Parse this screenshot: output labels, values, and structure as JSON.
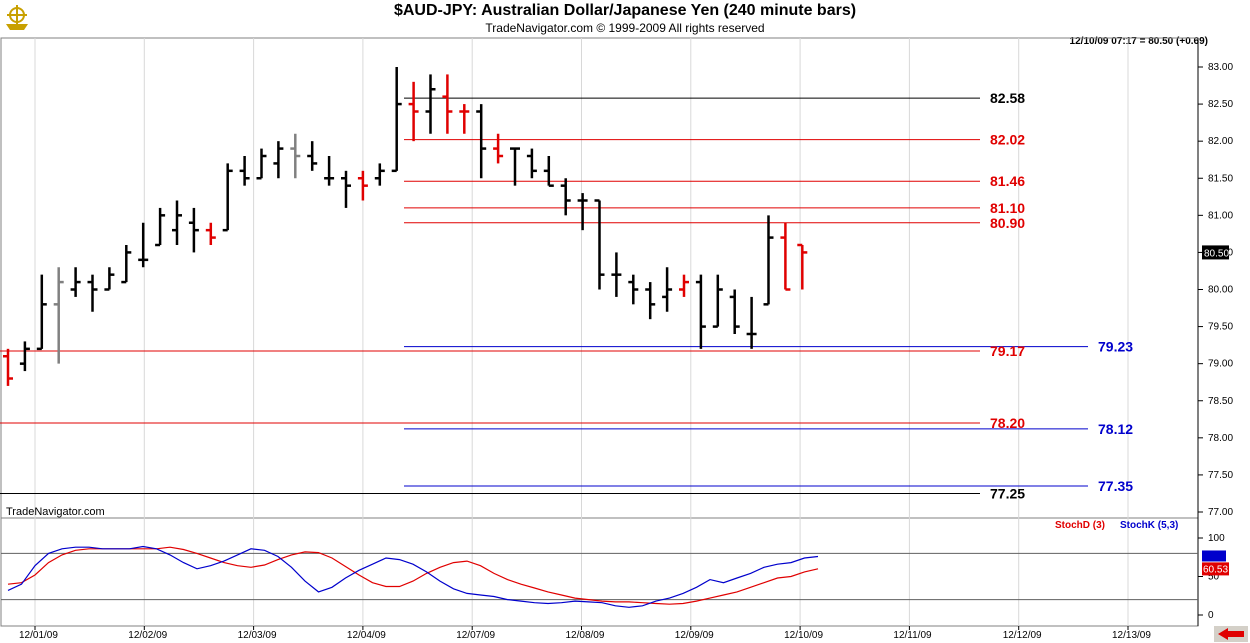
{
  "header": {
    "title": "$AUD-JPY:  Australian Dollar/Japanese Yen  (240 minute bars)",
    "subtitle": "TradeNavigator.com © 1999-2009 All rights reserved",
    "quote": "12/10/09 07:17 = 80.50 (+0.69)",
    "watermark": "TradeNavigator.com"
  },
  "legend": {
    "stochd": "StochD (3)",
    "stochk": "StochK (5,3)"
  },
  "colors": {
    "up": "#000000",
    "down": "#e00000",
    "neutral": "#808080",
    "blue": "#0000cc",
    "red": "#e00000"
  },
  "chart_data": [
    {
      "type": "bar",
      "title": "$AUD-JPY:  Australian Dollar/Japanese Yen  (240 minute bars)",
      "ylim": [
        77.0,
        83.2
      ],
      "yticks": [
        "83.00",
        "82.50",
        "82.00",
        "81.50",
        "81.00",
        "80.50",
        "80.00",
        "79.50",
        "79.00",
        "78.50",
        "78.00",
        "77.50",
        "77.00"
      ],
      "date_labels": [
        "12/01/09",
        "12/02/09",
        "12/03/09",
        "12/04/09",
        "12/07/09",
        "12/08/09",
        "12/09/09",
        "12/10/09",
        "12/11/09",
        "12/12/09",
        "12/13/09"
      ],
      "last_price_label": "80.50",
      "bars": [
        {
          "o": 79.1,
          "h": 79.2,
          "l": 78.7,
          "c": 78.8,
          "col": "r"
        },
        {
          "o": 79.0,
          "h": 79.3,
          "l": 78.9,
          "c": 79.2,
          "col": "k"
        },
        {
          "o": 79.2,
          "h": 80.2,
          "l": 79.2,
          "c": 79.8,
          "col": "k"
        },
        {
          "o": 79.8,
          "h": 80.3,
          "l": 79.0,
          "c": 80.1,
          "col": "g"
        },
        {
          "o": 80.0,
          "h": 80.3,
          "l": 79.9,
          "c": 80.1,
          "col": "k"
        },
        {
          "o": 80.1,
          "h": 80.2,
          "l": 79.7,
          "c": 80.0,
          "col": "k"
        },
        {
          "o": 80.0,
          "h": 80.3,
          "l": 80.0,
          "c": 80.2,
          "col": "k"
        },
        {
          "o": 80.1,
          "h": 80.6,
          "l": 80.1,
          "c": 80.5,
          "col": "k"
        },
        {
          "o": 80.4,
          "h": 80.9,
          "l": 80.3,
          "c": 80.4,
          "col": "k"
        },
        {
          "o": 80.6,
          "h": 81.1,
          "l": 80.6,
          "c": 81.0,
          "col": "k"
        },
        {
          "o": 80.8,
          "h": 81.2,
          "l": 80.6,
          "c": 81.0,
          "col": "k"
        },
        {
          "o": 80.9,
          "h": 81.1,
          "l": 80.5,
          "c": 80.8,
          "col": "k"
        },
        {
          "o": 80.8,
          "h": 80.9,
          "l": 80.6,
          "c": 80.7,
          "col": "r"
        },
        {
          "o": 80.8,
          "h": 81.7,
          "l": 80.8,
          "c": 81.6,
          "col": "k"
        },
        {
          "o": 81.6,
          "h": 81.8,
          "l": 81.4,
          "c": 81.5,
          "col": "k"
        },
        {
          "o": 81.5,
          "h": 81.9,
          "l": 81.5,
          "c": 81.8,
          "col": "k"
        },
        {
          "o": 81.7,
          "h": 82.0,
          "l": 81.5,
          "c": 81.9,
          "col": "k"
        },
        {
          "o": 81.9,
          "h": 82.1,
          "l": 81.5,
          "c": 81.8,
          "col": "g"
        },
        {
          "o": 81.8,
          "h": 82.0,
          "l": 81.6,
          "c": 81.7,
          "col": "k"
        },
        {
          "o": 81.5,
          "h": 81.8,
          "l": 81.4,
          "c": 81.5,
          "col": "k"
        },
        {
          "o": 81.5,
          "h": 81.6,
          "l": 81.1,
          "c": 81.4,
          "col": "k"
        },
        {
          "o": 81.5,
          "h": 81.6,
          "l": 81.2,
          "c": 81.4,
          "col": "r"
        },
        {
          "o": 81.5,
          "h": 81.7,
          "l": 81.4,
          "c": 81.6,
          "col": "k"
        },
        {
          "o": 81.6,
          "h": 83.0,
          "l": 81.6,
          "c": 82.5,
          "col": "k"
        },
        {
          "o": 82.5,
          "h": 82.8,
          "l": 82.0,
          "c": 82.4,
          "col": "r"
        },
        {
          "o": 82.4,
          "h": 82.9,
          "l": 82.1,
          "c": 82.7,
          "col": "k"
        },
        {
          "o": 82.6,
          "h": 82.9,
          "l": 82.1,
          "c": 82.4,
          "col": "r"
        },
        {
          "o": 82.4,
          "h": 82.5,
          "l": 82.1,
          "c": 82.4,
          "col": "r"
        },
        {
          "o": 82.4,
          "h": 82.5,
          "l": 81.5,
          "c": 81.9,
          "col": "k"
        },
        {
          "o": 81.9,
          "h": 82.1,
          "l": 81.7,
          "c": 81.8,
          "col": "r"
        },
        {
          "o": 81.9,
          "h": 81.9,
          "l": 81.4,
          "c": 81.9,
          "col": "k"
        },
        {
          "o": 81.8,
          "h": 81.9,
          "l": 81.5,
          "c": 81.6,
          "col": "k"
        },
        {
          "o": 81.6,
          "h": 81.8,
          "l": 81.4,
          "c": 81.4,
          "col": "k"
        },
        {
          "o": 81.4,
          "h": 81.5,
          "l": 81.0,
          "c": 81.2,
          "col": "k"
        },
        {
          "o": 81.2,
          "h": 81.3,
          "l": 80.8,
          "c": 81.2,
          "col": "k"
        },
        {
          "o": 81.2,
          "h": 81.2,
          "l": 80.0,
          "c": 80.2,
          "col": "k"
        },
        {
          "o": 80.2,
          "h": 80.5,
          "l": 79.9,
          "c": 80.2,
          "col": "k"
        },
        {
          "o": 80.1,
          "h": 80.2,
          "l": 79.8,
          "c": 80.0,
          "col": "k"
        },
        {
          "o": 80.0,
          "h": 80.1,
          "l": 79.6,
          "c": 79.8,
          "col": "k"
        },
        {
          "o": 79.9,
          "h": 80.3,
          "l": 79.7,
          "c": 80.0,
          "col": "k"
        },
        {
          "o": 80.0,
          "h": 80.2,
          "l": 79.9,
          "c": 80.1,
          "col": "r"
        },
        {
          "o": 80.1,
          "h": 80.2,
          "l": 79.2,
          "c": 79.5,
          "col": "k"
        },
        {
          "o": 79.5,
          "h": 80.2,
          "l": 79.5,
          "c": 80.0,
          "col": "k"
        },
        {
          "o": 79.9,
          "h": 80.0,
          "l": 79.4,
          "c": 79.5,
          "col": "k"
        },
        {
          "o": 79.4,
          "h": 79.9,
          "l": 79.2,
          "c": 79.4,
          "col": "k"
        },
        {
          "o": 79.8,
          "h": 81.0,
          "l": 79.8,
          "c": 80.7,
          "col": "k"
        },
        {
          "o": 80.7,
          "h": 80.9,
          "l": 80.0,
          "c": 80.0,
          "col": "r"
        },
        {
          "o": 80.6,
          "h": 80.6,
          "l": 80.0,
          "c": 80.5,
          "col": "r"
        }
      ],
      "levels": [
        {
          "value": 82.58,
          "label": "82.58",
          "color": "#000000",
          "x_start": "mid",
          "label_pos": "left"
        },
        {
          "value": 82.02,
          "label": "82.02",
          "color": "#e00000",
          "x_start": "mid",
          "label_pos": "left"
        },
        {
          "value": 81.46,
          "label": "81.46",
          "color": "#e00000",
          "x_start": "mid",
          "label_pos": "left"
        },
        {
          "value": 81.1,
          "label": "81.10",
          "color": "#e00000",
          "x_start": "mid",
          "label_pos": "left"
        },
        {
          "value": 80.9,
          "label": "80.90",
          "color": "#e00000",
          "x_start": "mid",
          "label_pos": "left"
        },
        {
          "value": 79.23,
          "label": "79.23",
          "color": "#0000cc",
          "x_start": "mid",
          "label_pos": "right"
        },
        {
          "value": 79.17,
          "label": "79.17",
          "color": "#e00000",
          "x_start": "left",
          "label_pos": "left"
        },
        {
          "value": 78.2,
          "label": "78.20",
          "color": "#e00000",
          "x_start": "left",
          "label_pos": "left"
        },
        {
          "value": 78.12,
          "label": "78.12",
          "color": "#0000cc",
          "x_start": "mid",
          "label_pos": "right"
        },
        {
          "value": 77.35,
          "label": "77.35",
          "color": "#0000cc",
          "x_start": "mid",
          "label_pos": "right"
        },
        {
          "value": 77.25,
          "label": "77.25",
          "color": "#000000",
          "x_start": "left",
          "label_pos": "left"
        }
      ]
    },
    {
      "type": "line",
      "ylim": [
        0,
        100
      ],
      "yticks": [
        "100",
        "50",
        "0"
      ],
      "reference_lines": [
        80,
        20
      ],
      "last_value_label": "60.53",
      "series": [
        {
          "name": "StochD (3)",
          "color": "#e00000",
          "values": [
            40,
            42,
            52,
            68,
            78,
            84,
            86,
            86,
            86,
            86,
            86,
            86,
            88,
            85,
            80,
            74,
            68,
            64,
            62,
            65,
            72,
            78,
            82,
            81,
            74,
            63,
            52,
            42,
            37,
            37,
            44,
            54,
            62,
            68,
            70,
            64,
            54,
            46,
            40,
            35,
            30,
            26,
            22,
            20,
            18,
            17,
            17,
            16,
            15,
            14,
            15,
            18,
            22,
            26,
            30,
            36,
            42,
            48,
            50,
            56,
            60
          ]
        },
        {
          "name": "StochK (5,3)",
          "color": "#0000cc",
          "values": [
            32,
            40,
            64,
            80,
            86,
            88,
            88,
            86,
            86,
            86,
            89,
            86,
            78,
            68,
            60,
            64,
            70,
            78,
            86,
            84,
            76,
            62,
            44,
            30,
            36,
            48,
            58,
            66,
            74,
            72,
            66,
            56,
            44,
            34,
            28,
            26,
            24,
            20,
            18,
            16,
            15,
            16,
            18,
            17,
            16,
            12,
            10,
            12,
            18,
            22,
            28,
            36,
            46,
            42,
            48,
            54,
            62,
            66,
            68,
            74,
            76
          ]
        }
      ]
    }
  ]
}
